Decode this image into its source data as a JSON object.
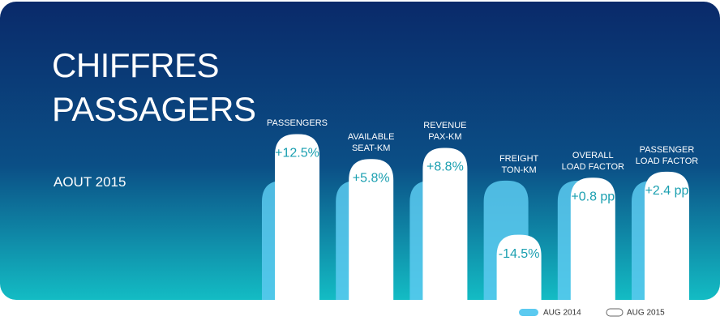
{
  "chart_data": {
    "type": "bar",
    "title": "CHIFFRES\nPASSAGERS",
    "subtitle": "AOUT 2015",
    "categories": [
      "PASSENGERS",
      "AVAILABLE\nSEAT-KM",
      "REVENUE\nPAX-KM",
      "FREIGHT\nTON-KM",
      "OVERALL\nLOAD FACTOR",
      "PASSENGER\nLOAD FACTOR"
    ],
    "series": [
      {
        "name": "AUG 2014",
        "color": "#5ccaf0",
        "values": [
          0,
          0,
          0,
          0,
          0,
          0
        ]
      },
      {
        "name": "AUG 2015",
        "color": "#ffffff",
        "values": [
          12.5,
          5.8,
          8.8,
          -14.5,
          0.8,
          2.4
        ],
        "value_labels": [
          "+12.5%",
          "+5.8%",
          "+8.8%",
          "-14.5%",
          "+0.8 pp",
          "+2.4 pp"
        ]
      }
    ],
    "ylim": [
      -32,
      20
    ]
  }
}
